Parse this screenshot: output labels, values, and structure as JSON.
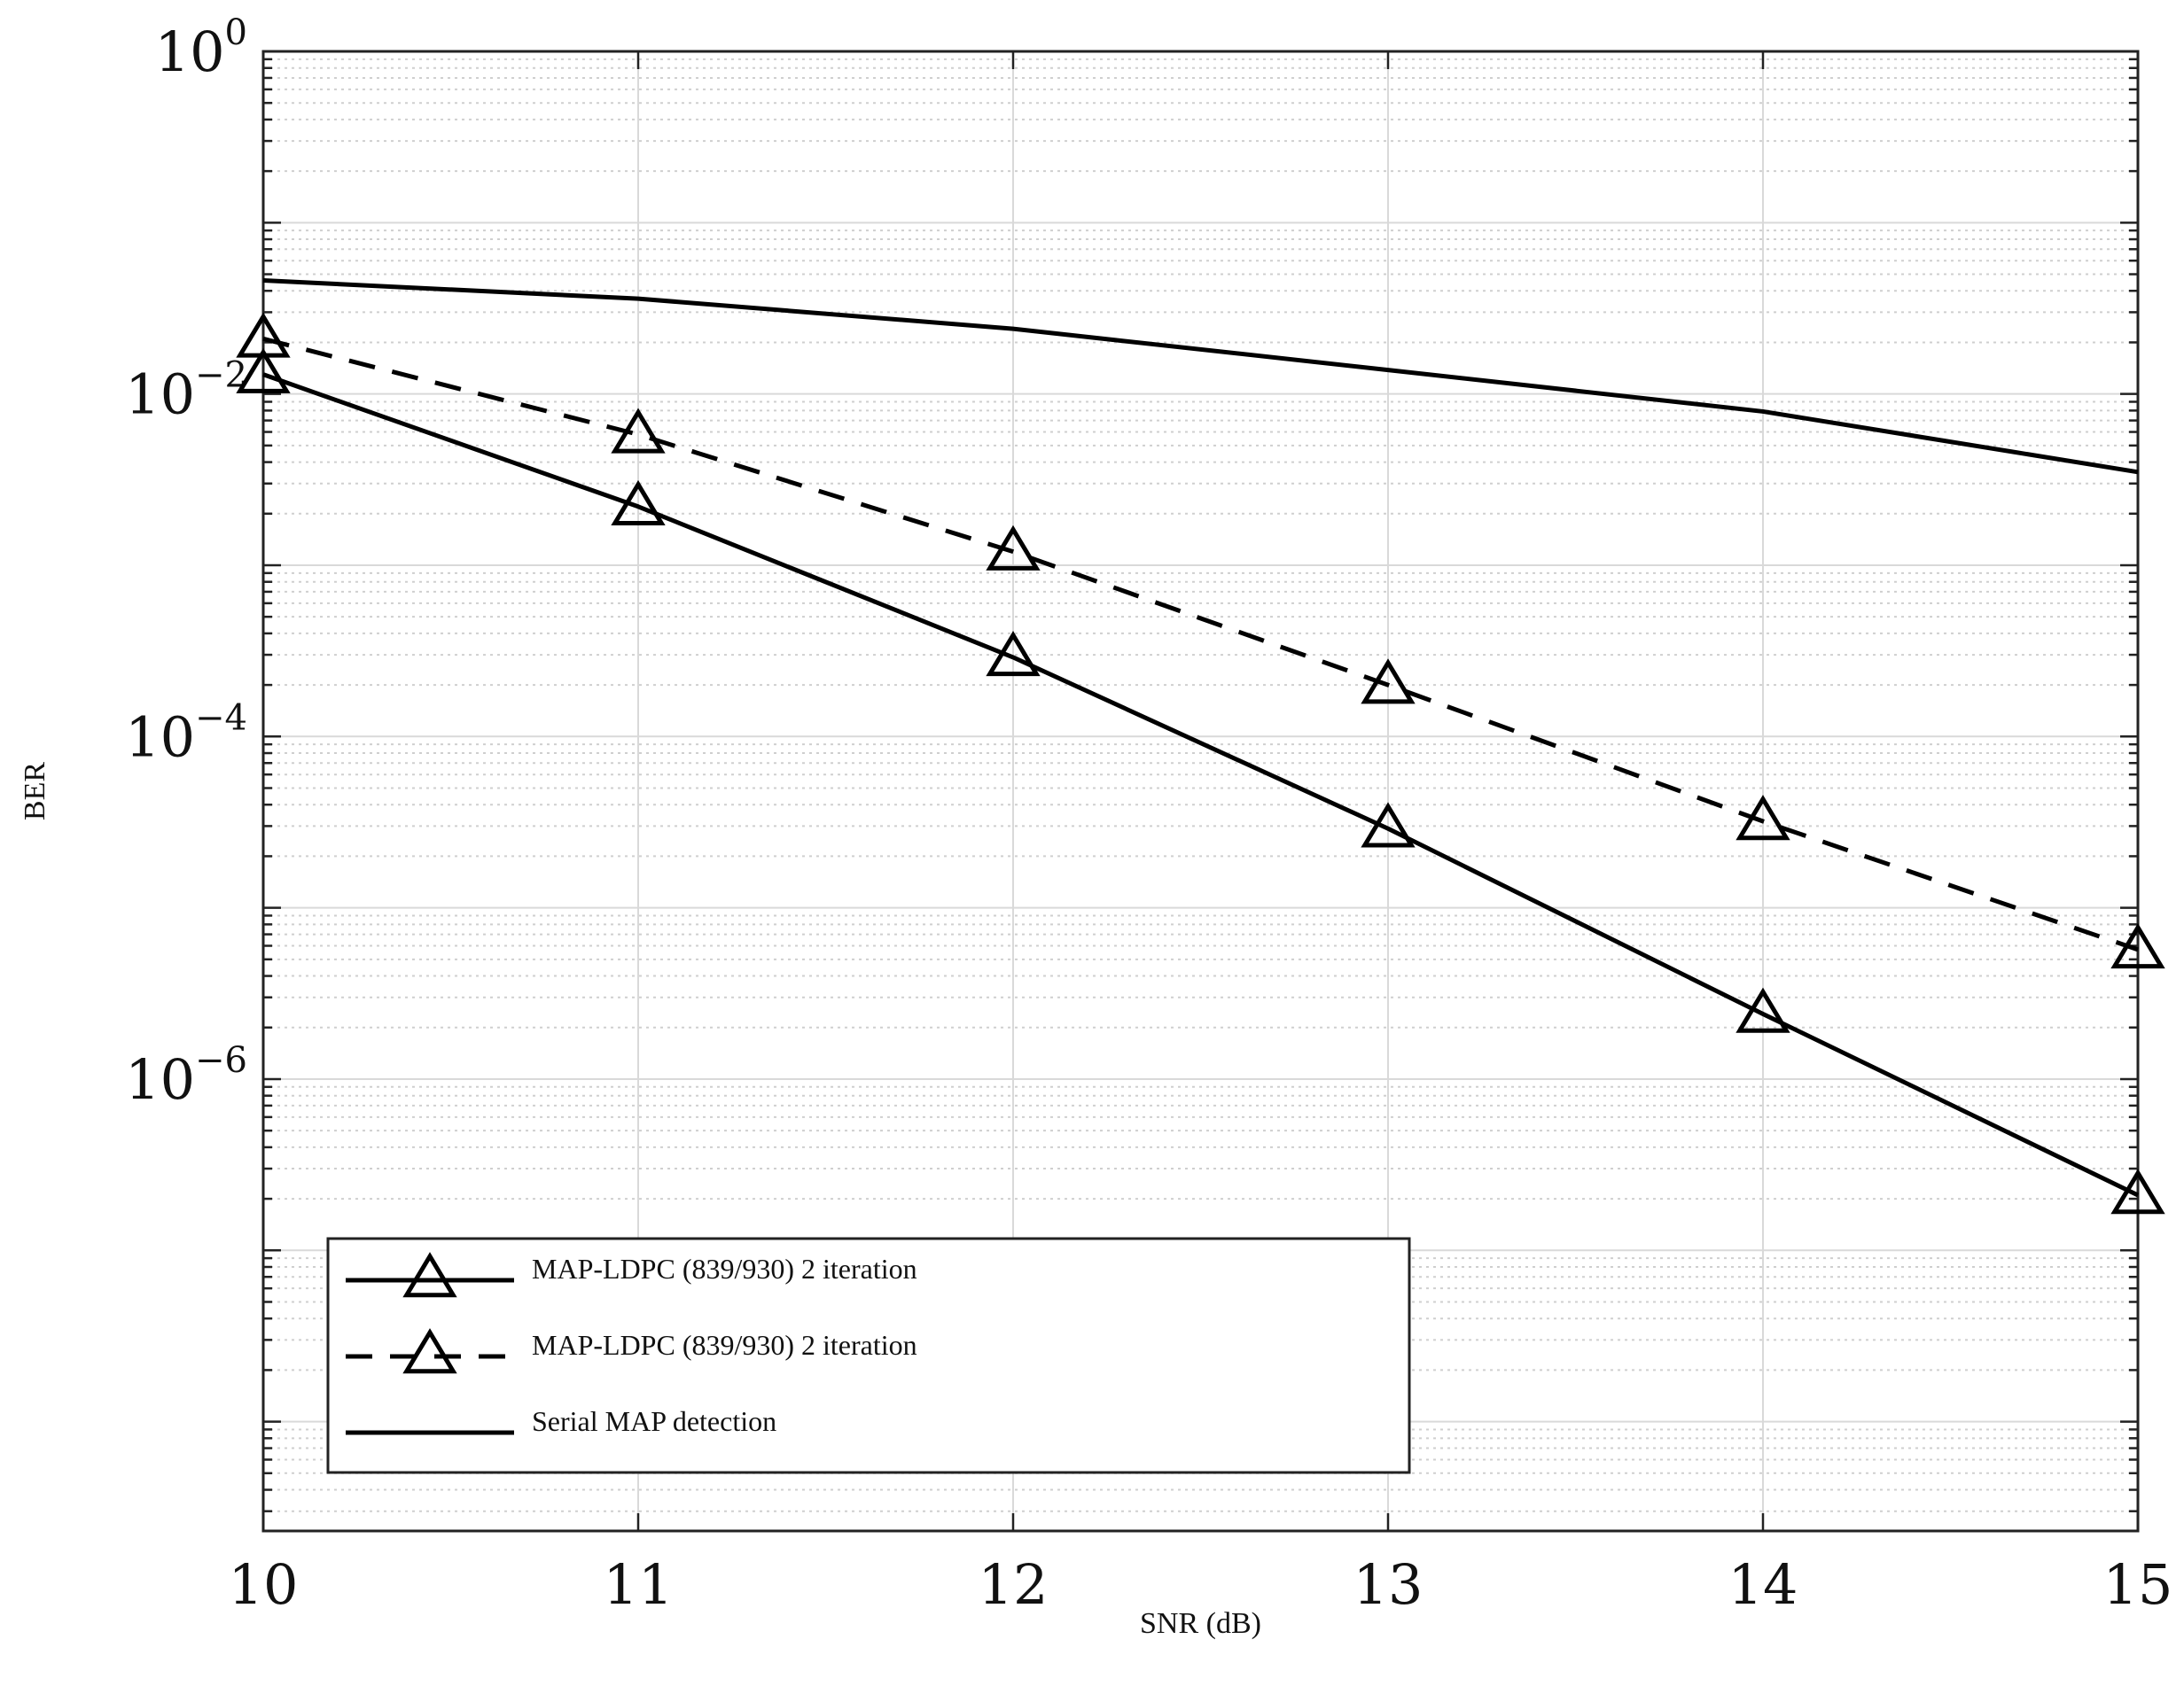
{
  "chart_data": {
    "type": "line",
    "xlabel": "SNR (dB)",
    "ylabel": "BER",
    "xlim": [
      10,
      15
    ],
    "ylim": [
      2.3e-09,
      1
    ],
    "yscale": "log",
    "grid": true,
    "minor_grid": true,
    "legend_position": "bottom-left",
    "x_ticks": [
      "10",
      "11",
      "12",
      "13",
      "14",
      "15"
    ],
    "y_ticks": [
      {
        "base": "10",
        "exp": "0",
        "value": 1
      },
      {
        "base": "10",
        "exp": "−2",
        "value": 0.01
      },
      {
        "base": "10",
        "exp": "−4",
        "value": 0.0001
      },
      {
        "base": "10",
        "exp": "−6",
        "value": 1e-06
      }
    ],
    "series": [
      {
        "name": "MAP-LDPC (839/930) 2 iteration",
        "line_style": "solid",
        "marker": "triangle",
        "x": [
          10,
          11,
          12,
          13,
          14,
          15
        ],
        "y": [
          0.013,
          0.0022,
          0.00029,
          2.9e-05,
          2.4e-06,
          2.1e-07
        ]
      },
      {
        "name": "MAP-LDPC (839/930) 2 iteration",
        "line_style": "dashed",
        "marker": "triangle",
        "x": [
          10,
          11,
          12,
          13,
          14,
          15
        ],
        "y": [
          0.021,
          0.0058,
          0.0012,
          0.0002,
          3.2e-05,
          5.7e-06
        ]
      },
      {
        "name": "Serial MAP detection",
        "line_style": "solid",
        "marker": "none",
        "x": [
          10,
          11,
          12,
          13,
          14,
          15
        ],
        "y": [
          0.046,
          0.036,
          0.024,
          0.0138,
          0.0079,
          0.0035
        ]
      }
    ],
    "colors": {
      "line": "#000000",
      "grid": "#d8d8d8",
      "axes": "#222222"
    }
  }
}
